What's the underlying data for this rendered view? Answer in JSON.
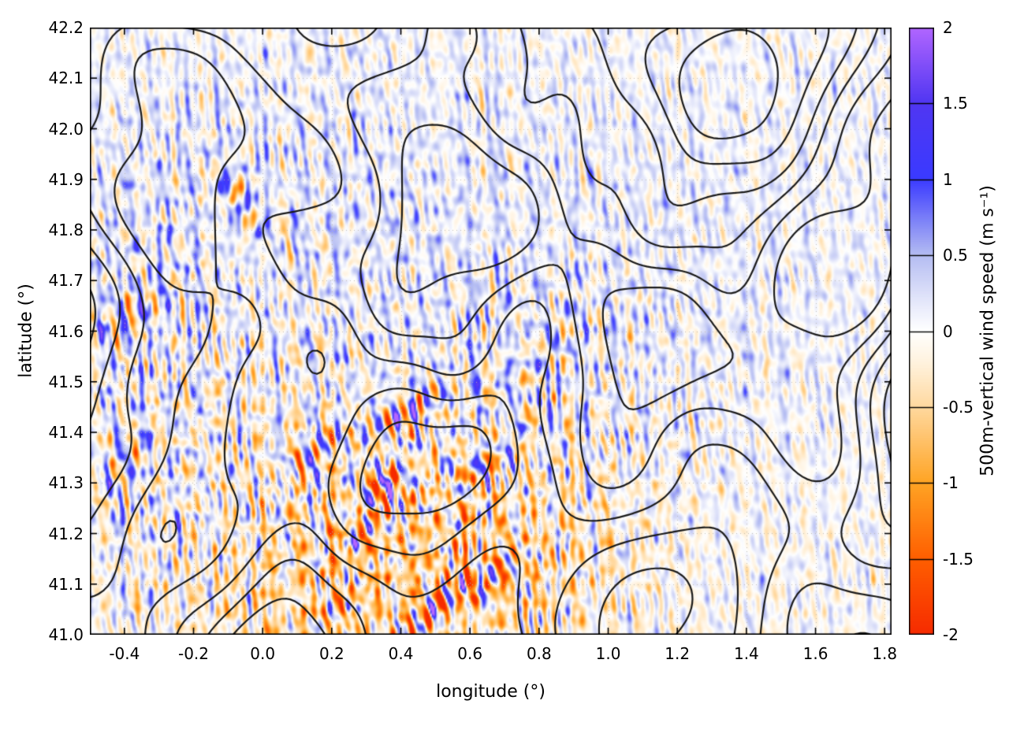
{
  "figure": {
    "background": "#ffffff",
    "border_color": "#000000"
  },
  "chart_data": {
    "type": "heatmap",
    "title": "",
    "xlabel": "longitude (°)",
    "ylabel": "latitude (°)",
    "cblabel": "500m-vertical wind speed (m s⁻¹)",
    "xlim": [
      -0.5,
      1.82
    ],
    "ylim": [
      41.0,
      42.2
    ],
    "clim": [
      -2,
      2
    ],
    "xticks": {
      "values": [
        -0.4,
        -0.2,
        0.0,
        0.2,
        0.4,
        0.6,
        0.8,
        1.0,
        1.2,
        1.4,
        1.6,
        1.8
      ],
      "labels": [
        "-0.4",
        "-0.2",
        "0.0",
        "0.2",
        "0.4",
        "0.6",
        "0.8",
        "1.0",
        "1.2",
        "1.4",
        "1.6",
        "1.8"
      ]
    },
    "yticks": {
      "values": [
        41.0,
        41.1,
        41.2,
        41.3,
        41.4,
        41.5,
        41.6,
        41.7,
        41.8,
        41.9,
        42.0,
        42.1,
        42.2
      ],
      "labels": [
        "41.0",
        "41.1",
        "41.2",
        "41.3",
        "41.4",
        "41.5",
        "41.6",
        "41.7",
        "41.8",
        "41.9",
        "42.0",
        "42.1",
        "42.2"
      ]
    },
    "cbticks": {
      "values": [
        -2,
        -1.5,
        -1,
        -0.5,
        0,
        0.5,
        1,
        1.5,
        2
      ],
      "labels": [
        "-2",
        "-1.5",
        "-1",
        "-0.5",
        "0",
        "0.5",
        "1",
        "1.5",
        "2"
      ]
    },
    "grid": {
      "show": true,
      "color": "rgba(185,180,170,0.85)",
      "dash": [
        1,
        4
      ]
    },
    "palette": {
      "stops": [
        {
          "v": -2.0,
          "c": "#f62b00"
        },
        {
          "v": -1.5,
          "c": "#ff5f00"
        },
        {
          "v": -1.0,
          "c": "#ffa424"
        },
        {
          "v": -0.5,
          "c": "#ffd9a0"
        },
        {
          "v": -0.2,
          "c": "#fff3e0"
        },
        {
          "v": 0.0,
          "c": "#ffffff"
        },
        {
          "v": 0.2,
          "c": "#e3e6fa"
        },
        {
          "v": 0.5,
          "c": "#b4bcf2"
        },
        {
          "v": 1.0,
          "c": "#3a3aff"
        },
        {
          "v": 1.5,
          "c": "#5036f2"
        },
        {
          "v": 2.0,
          "c": "#b266ff"
        }
      ]
    },
    "field": {
      "seed": 12,
      "noise": {
        "count": 40,
        "base_amp": 0.045,
        "lambda_min": 0.025,
        "lambda_span": 0.13
      },
      "amp_regions": [
        {
          "x": 0.42,
          "y": 41.2,
          "sx": 0.38,
          "sy": 0.2,
          "amp": 2.4
        },
        {
          "x": -0.35,
          "y": 41.5,
          "sx": 0.22,
          "sy": 0.3,
          "amp": 1.2
        },
        {
          "x": 0.9,
          "y": 41.55,
          "sx": 0.3,
          "sy": 0.18,
          "amp": 0.8
        },
        {
          "x": 0.2,
          "y": 41.85,
          "sx": 0.3,
          "sy": 0.2,
          "amp": 0.6
        }
      ],
      "bias_regions": [
        {
          "x": 0.15,
          "y": 41.98,
          "sx": 0.55,
          "sy": 0.22,
          "amp": 0.1
        },
        {
          "x": 1.35,
          "y": 41.78,
          "sx": 0.5,
          "sy": 0.3,
          "amp": 0.1
        },
        {
          "x": -0.25,
          "y": 41.47,
          "sx": 0.28,
          "sy": 0.18,
          "amp": -0.18
        },
        {
          "x": 0.55,
          "y": 41.16,
          "sx": 0.33,
          "sy": 0.14,
          "amp": -0.45
        },
        {
          "x": 0.1,
          "y": 41.04,
          "sx": 0.3,
          "sy": 0.1,
          "amp": -0.25
        },
        {
          "x": 0.42,
          "y": 41.62,
          "sx": 0.45,
          "sy": 0.22,
          "amp": 0.1
        },
        {
          "x": -0.35,
          "y": 41.52,
          "sx": 0.18,
          "sy": 0.28,
          "amp": 0.22
        }
      ],
      "wave_packets": [
        {
          "x": 0.42,
          "y": 41.445,
          "amp": 2.0,
          "theta": 22,
          "lambda": 0.05,
          "sig_along": 0.1,
          "sig_cross": 0.016,
          "phase": 0
        },
        {
          "x": 0.355,
          "y": 41.3,
          "amp": 2.7,
          "theta": 38,
          "lambda": 0.055,
          "sig_along": 0.05,
          "sig_cross": 0.018,
          "phase": 1.6
        },
        {
          "x": 0.17,
          "y": 41.37,
          "amp": 1.8,
          "theta": 28,
          "lambda": 0.05,
          "sig_along": 0.085,
          "sig_cross": 0.02,
          "phase": 0.5
        },
        {
          "x": 0.5,
          "y": 41.05,
          "amp": 2.2,
          "theta": 33,
          "lambda": 0.05,
          "sig_along": 0.1,
          "sig_cross": 0.022,
          "phase": 2.1
        },
        {
          "x": 0.3,
          "y": 41.21,
          "amp": 1.5,
          "theta": 30,
          "lambda": 0.05,
          "sig_along": 0.07,
          "sig_cross": 0.02,
          "phase": 0.9
        },
        {
          "x": 0.56,
          "y": 41.275,
          "amp": 1.5,
          "theta": 45,
          "lambda": 0.06,
          "sig_along": 0.06,
          "sig_cross": 0.02,
          "phase": 0
        },
        {
          "x": 0.68,
          "y": 41.12,
          "amp": 1.7,
          "theta": 40,
          "lambda": 0.05,
          "sig_along": 0.08,
          "sig_cross": 0.02,
          "phase": 2.8
        },
        {
          "x": -0.42,
          "y": 41.62,
          "amp": 1.2,
          "theta": 20,
          "lambda": 0.065,
          "sig_along": 0.08,
          "sig_cross": 0.03,
          "phase": 0
        },
        {
          "x": -0.4,
          "y": 41.34,
          "amp": 1.1,
          "theta": 30,
          "lambda": 0.07,
          "sig_along": 0.09,
          "sig_cross": 0.03,
          "phase": 1.2
        },
        {
          "x": 0.83,
          "y": 41.58,
          "amp": 0.9,
          "theta": 55,
          "lambda": 0.07,
          "sig_along": 0.13,
          "sig_cross": 0.025,
          "phase": 0.4
        },
        {
          "x": 0.95,
          "y": 41.9,
          "amp": 0.9,
          "theta": 10,
          "lambda": 0.05,
          "sig_along": 0.03,
          "sig_cross": 0.03,
          "phase": 1.5
        },
        {
          "x": -0.07,
          "y": 41.86,
          "amp": -1.1,
          "theta": 135,
          "lambda": 0.07,
          "sig_along": 0.07,
          "sig_cross": 0.025,
          "phase": 0.3
        },
        {
          "x": 0.24,
          "y": 41.07,
          "amp": 1.3,
          "theta": 35,
          "lambda": 0.05,
          "sig_along": 0.06,
          "sig_cross": 0.02,
          "phase": 1.1
        },
        {
          "x": 0.62,
          "y": 41.33,
          "amp": 1.2,
          "theta": 50,
          "lambda": 0.055,
          "sig_along": 0.05,
          "sig_cross": 0.02,
          "phase": 0.7
        }
      ]
    },
    "contours": {
      "color": "#1a1a1a",
      "width": 2.2,
      "seed": 31,
      "harmonics": 22,
      "level_sigmas": [
        -1.4,
        -0.7,
        0,
        0.7,
        1.4,
        2.1
      ],
      "bumps": [
        {
          "x": 0.35,
          "y": 41.1,
          "sx": 0.5,
          "sy": 0.22,
          "amp": 1.2
        },
        {
          "x": 1.45,
          "y": 41.3,
          "sx": 0.45,
          "sy": 0.3,
          "amp": 0.8
        },
        {
          "x": 0.78,
          "y": 41.62,
          "sx": 0.35,
          "sy": 0.22,
          "amp": -0.9
        },
        {
          "x": -0.3,
          "y": 41.2,
          "sx": 0.4,
          "sy": 0.25,
          "amp": 0.7
        },
        {
          "x": 1.0,
          "y": 42.1,
          "sx": 0.5,
          "sy": 0.25,
          "amp": 0.6
        }
      ]
    }
  }
}
